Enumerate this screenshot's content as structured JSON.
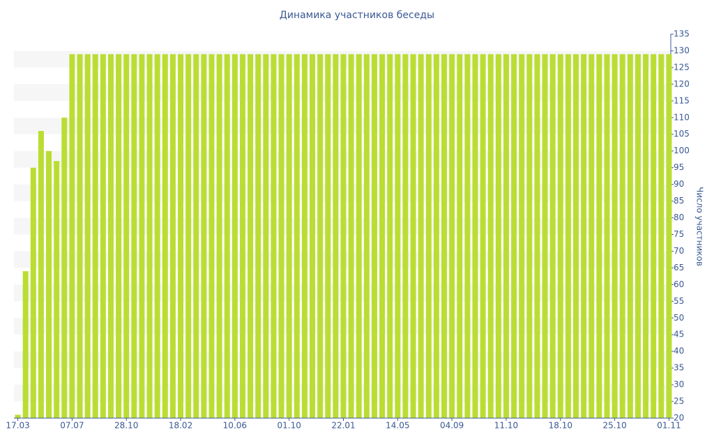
{
  "chart_data": {
    "type": "bar",
    "title": "Динамика участников беседы",
    "y_label": "Число участников",
    "categories": [
      "17.03",
      null,
      null,
      null,
      null,
      null,
      null,
      "07.07",
      null,
      null,
      null,
      null,
      null,
      null,
      "28.10",
      null,
      null,
      null,
      null,
      null,
      null,
      "18.02",
      null,
      null,
      null,
      null,
      null,
      null,
      "10.06",
      null,
      null,
      null,
      null,
      null,
      null,
      "01.10",
      null,
      null,
      null,
      null,
      null,
      null,
      "22.01",
      null,
      null,
      null,
      null,
      null,
      null,
      "14.05",
      null,
      null,
      null,
      null,
      null,
      null,
      "04.09",
      null,
      null,
      null,
      null,
      null,
      null,
      "11.10",
      null,
      null,
      null,
      null,
      null,
      null,
      "18.10",
      null,
      null,
      null,
      null,
      null,
      null,
      "25.10",
      null,
      null,
      null,
      null,
      null,
      null,
      "01.11"
    ],
    "values": [
      21,
      64,
      95,
      106,
      100,
      97,
      110,
      129,
      129,
      129,
      129,
      129,
      129,
      129,
      129,
      129,
      129,
      129,
      129,
      129,
      129,
      129,
      129,
      129,
      129,
      129,
      129,
      129,
      129,
      129,
      129,
      129,
      129,
      129,
      129,
      129,
      129,
      129,
      129,
      129,
      129,
      129,
      129,
      129,
      129,
      129,
      129,
      129,
      129,
      129,
      129,
      129,
      129,
      129,
      129,
      129,
      129,
      129,
      129,
      129,
      129,
      129,
      129,
      129,
      129,
      129,
      129,
      129,
      129,
      129,
      129,
      129,
      129,
      129,
      129,
      129,
      129,
      129,
      129,
      129,
      129,
      129,
      129,
      129,
      129
    ],
    "color": "#bbdd33",
    "ylim": [
      20,
      135
    ],
    "yticks": [
      20,
      25,
      30,
      35,
      40,
      45,
      50,
      55,
      60,
      65,
      70,
      75,
      80,
      85,
      90,
      95,
      100,
      105,
      110,
      115,
      120,
      125,
      130,
      135
    ],
    "y_axis_side": "right",
    "grid": "bands"
  }
}
